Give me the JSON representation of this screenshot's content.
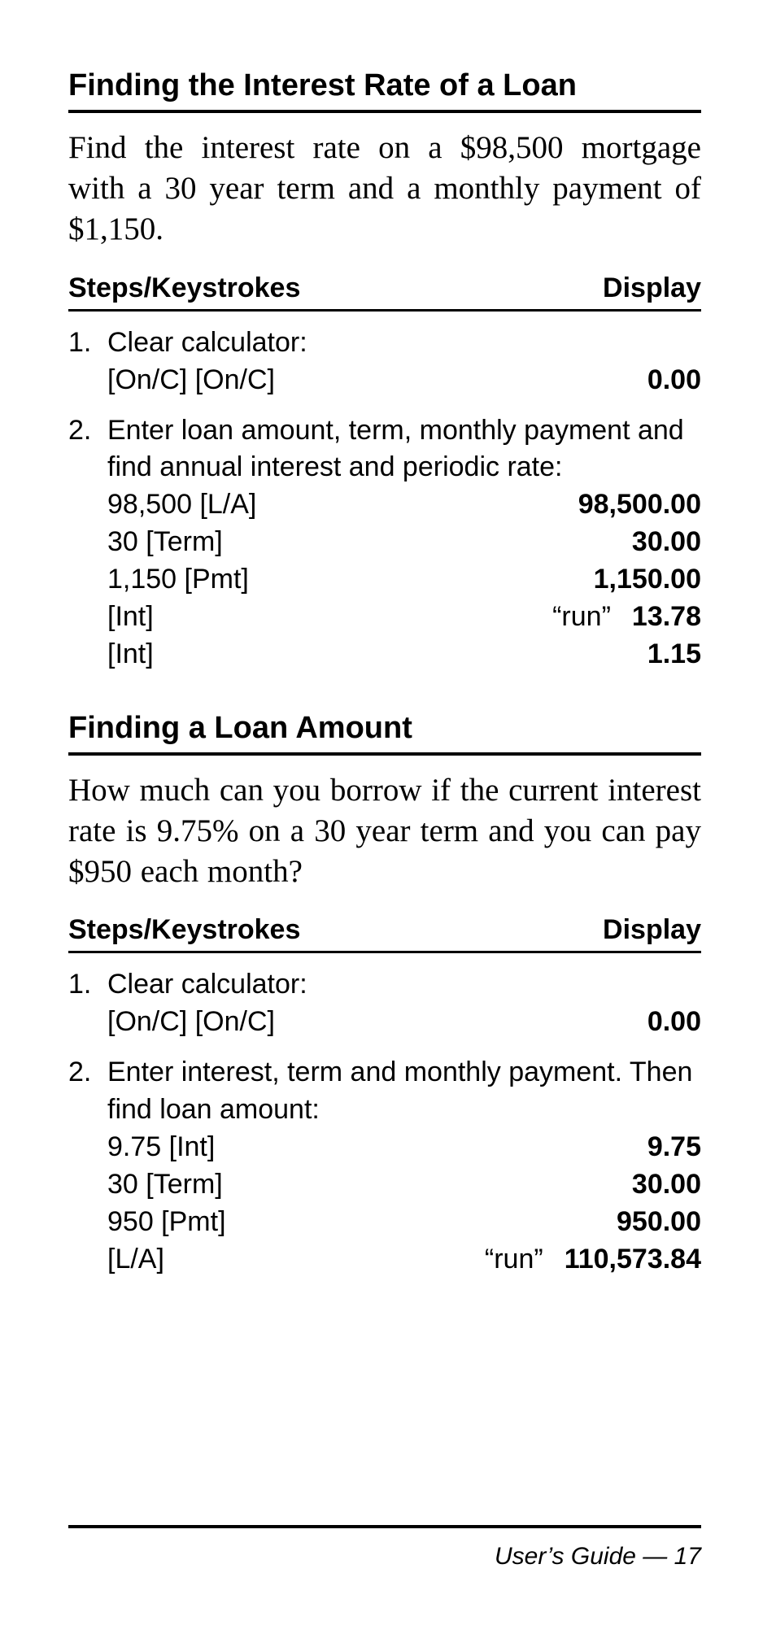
{
  "colors": {
    "text": "#000000",
    "background": "#ffffff",
    "rule": "#000000"
  },
  "typography": {
    "heading_font": "Helvetica Condensed Bold",
    "body_font": "ITC Garamond",
    "sans_font": "Helvetica Condensed",
    "heading_size_pt": 28,
    "intro_size_pt": 29,
    "table_size_pt": 25
  },
  "sections": [
    {
      "heading": "Finding the Interest Rate of a Loan",
      "intro": "Find the interest rate on a $98,500 mortgage with a 30 year term and a monthly payment of $1,150.",
      "table_head_left": "Steps/Keystrokes",
      "table_head_right": "Display",
      "steps": [
        {
          "num": "1.",
          "desc": "Clear calculator:",
          "rows": [
            {
              "k": "[On/C] [On/C]",
              "mid": "",
              "v": "0.00"
            }
          ]
        },
        {
          "num": "2.",
          "desc": "Enter loan amount, term, monthly payment and find annual interest and periodic rate:",
          "rows": [
            {
              "k": "98,500 [L/A]",
              "mid": "",
              "v": "98,500.00"
            },
            {
              "k": "30 [Term]",
              "mid": "",
              "v": "30.00"
            },
            {
              "k": "1,150 [Pmt]",
              "mid": "",
              "v": "1,150.00"
            },
            {
              "k": "[Int]",
              "mid": "“run”",
              "v": "13.78"
            },
            {
              "k": "[Int]",
              "mid": "",
              "v": "1.15"
            }
          ]
        }
      ]
    },
    {
      "heading": "Finding a Loan Amount",
      "intro": "How much can you borrow if the current interest rate is 9.75% on a 30 year term and you can pay $950 each month?",
      "table_head_left": "Steps/Keystrokes",
      "table_head_right": "Display",
      "steps": [
        {
          "num": "1.",
          "desc": "Clear calculator:",
          "rows": [
            {
              "k": "[On/C] [On/C]",
              "mid": "",
              "v": "0.00"
            }
          ]
        },
        {
          "num": "2.",
          "desc": "Enter interest, term and monthly payment. Then find loan amount:",
          "rows": [
            {
              "k": "9.75 [Int]",
              "mid": "",
              "v": "9.75"
            },
            {
              "k": "30 [Term]",
              "mid": "",
              "v": "30.00"
            },
            {
              "k": "950 [Pmt]",
              "mid": "",
              "v": "950.00"
            },
            {
              "k": "[L/A]",
              "mid": "“run”",
              "v": "110,573.84"
            }
          ]
        }
      ]
    }
  ],
  "footer": "User’s Guide — 17"
}
